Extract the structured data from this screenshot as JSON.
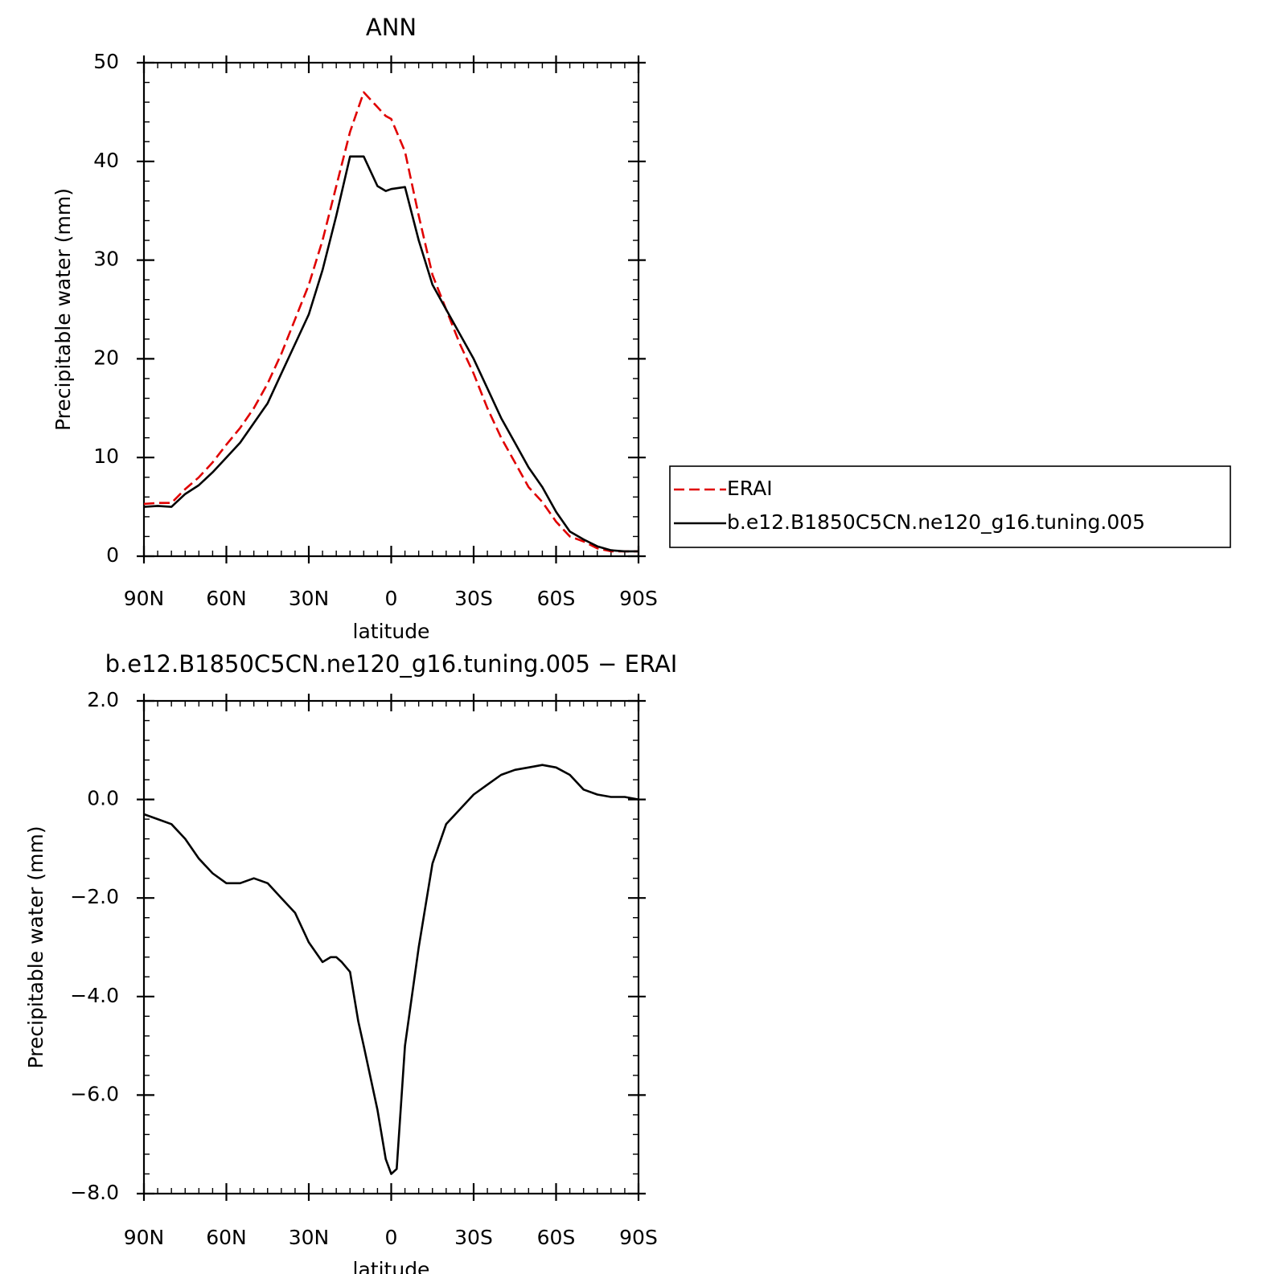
{
  "chart_data": [
    {
      "type": "line",
      "title": "ANN",
      "xlabel": "latitude",
      "ylabel": "Precipitable water (mm)",
      "x_unit": "degrees latitude (positive = N, negative = S)",
      "xlim": [
        90,
        -90
      ],
      "ylim": [
        0,
        50
      ],
      "xticks": [
        90,
        60,
        30,
        0,
        -30,
        -60,
        -90
      ],
      "xtick_labels": [
        "90N",
        "60N",
        "30N",
        "0",
        "30S",
        "60S",
        "90S"
      ],
      "yticks": [
        0,
        10,
        20,
        30,
        40,
        50
      ],
      "ytick_labels": [
        "0",
        "10",
        "20",
        "30",
        "40",
        "50"
      ],
      "grid": false,
      "legend_placement": "right-outside",
      "x": [
        90,
        85,
        80,
        75,
        70,
        65,
        60,
        55,
        50,
        45,
        40,
        35,
        30,
        25,
        20,
        15,
        10,
        5,
        2,
        0,
        -5,
        -10,
        -15,
        -20,
        -25,
        -30,
        -35,
        -40,
        -45,
        -50,
        -55,
        -60,
        -65,
        -70,
        -75,
        -80,
        -85,
        -90
      ],
      "series": [
        {
          "name": "ERAI",
          "color": "#e00000",
          "dash": "dashed",
          "values": [
            5.3,
            5.4,
            5.4,
            6.8,
            8.0,
            9.5,
            11.3,
            13.0,
            15.0,
            17.5,
            20.5,
            24.0,
            27.5,
            32.0,
            37.5,
            43.0,
            47.0,
            45.5,
            44.6,
            44.3,
            41.0,
            34.5,
            28.5,
            25.0,
            21.5,
            18.5,
            15.0,
            12.0,
            9.5,
            7.0,
            5.5,
            3.5,
            2.0,
            1.5,
            0.8,
            0.5,
            0.5,
            0.5
          ]
        },
        {
          "name": "b.e12.B1850C5CN.ne120_g16.tuning.005",
          "color": "#000000",
          "dash": "solid",
          "values": [
            5.0,
            5.1,
            5.0,
            6.3,
            7.2,
            8.5,
            10.0,
            11.5,
            13.5,
            15.5,
            18.5,
            21.5,
            24.5,
            29.0,
            34.5,
            40.5,
            40.5,
            37.5,
            37.0,
            37.2,
            37.4,
            32.0,
            27.5,
            25.0,
            22.5,
            20.0,
            17.0,
            14.0,
            11.5,
            9.0,
            7.0,
            4.5,
            2.5,
            1.7,
            1.0,
            0.6,
            0.5,
            0.5
          ]
        }
      ]
    },
    {
      "type": "line",
      "title": "b.e12.B1850C5CN.ne120_g16.tuning.005 − ERAI",
      "xlabel": "latitude",
      "ylabel": "Precipitable water (mm)",
      "x_unit": "degrees latitude (positive = N, negative = S)",
      "xlim": [
        90,
        -90
      ],
      "ylim": [
        -8,
        2
      ],
      "xticks": [
        90,
        60,
        30,
        0,
        -30,
        -60,
        -90
      ],
      "xtick_labels": [
        "90N",
        "60N",
        "30N",
        "0",
        "30S",
        "60S",
        "90S"
      ],
      "yticks": [
        -8,
        -6,
        -4,
        -2,
        0,
        2
      ],
      "ytick_labels": [
        "−8.0",
        "−6.0",
        "−4.0",
        "−2.0",
        "0.0",
        "2.0"
      ],
      "grid": false,
      "x": [
        90,
        85,
        80,
        75,
        70,
        65,
        60,
        55,
        50,
        45,
        40,
        35,
        30,
        25,
        22,
        20,
        18,
        15,
        12,
        10,
        5,
        2,
        0,
        -2,
        -5,
        -10,
        -15,
        -20,
        -25,
        -30,
        -35,
        -40,
        -45,
        -50,
        -55,
        -60,
        -65,
        -70,
        -75,
        -80,
        -85,
        -90
      ],
      "series": [
        {
          "color": "#000000",
          "dash": "solid",
          "values": [
            -0.3,
            -0.4,
            -0.5,
            -0.8,
            -1.2,
            -1.5,
            -1.7,
            -1.7,
            -1.6,
            -1.7,
            -2.0,
            -2.3,
            -2.9,
            -3.3,
            -3.2,
            -3.2,
            -3.3,
            -3.5,
            -4.5,
            -5.0,
            -6.3,
            -7.3,
            -7.6,
            -7.5,
            -5.0,
            -3.0,
            -1.3,
            -0.5,
            -0.2,
            0.1,
            0.3,
            0.5,
            0.6,
            0.65,
            0.7,
            0.65,
            0.5,
            0.2,
            0.1,
            0.05,
            0.05,
            0.0
          ]
        }
      ]
    }
  ]
}
